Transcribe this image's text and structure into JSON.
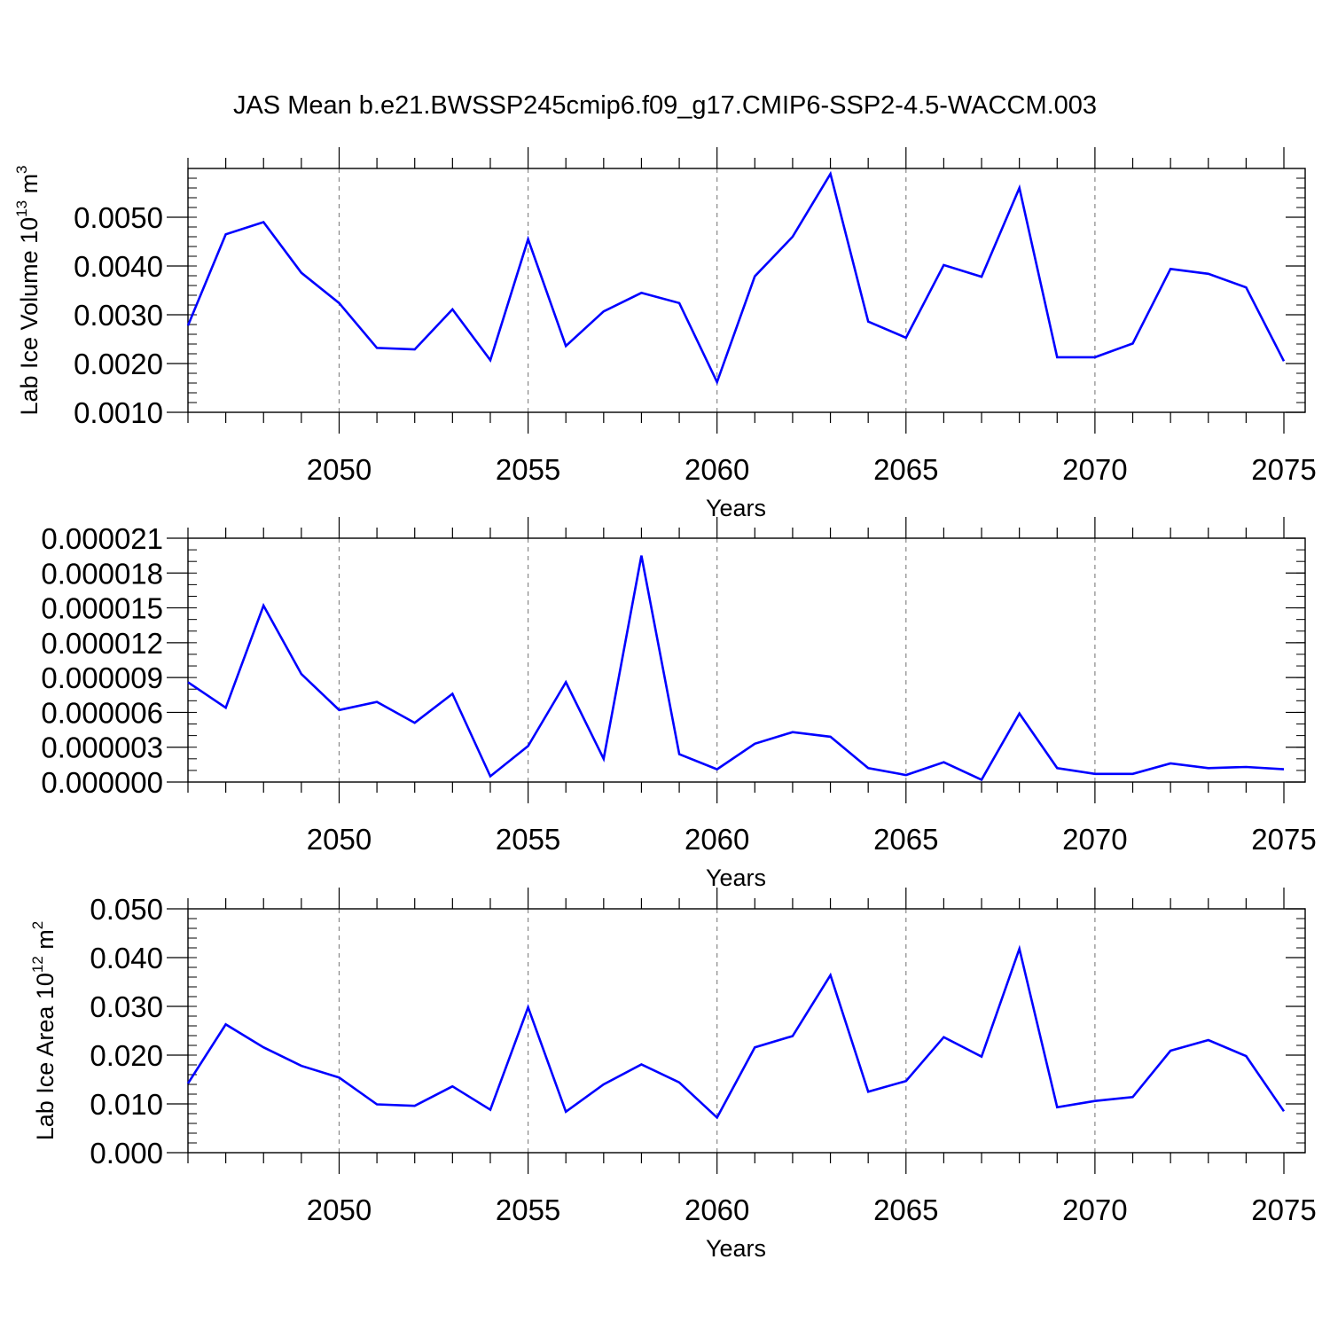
{
  "title": "JAS Mean b.e21.BWSSP245cmip6.f09_g17.CMIP6-SSP2-4.5-WACCM.003",
  "chart_data": [
    {
      "type": "line",
      "ylabel": "Lab Ice Volume 10",
      "ylabel_exp": "13",
      "ylabel_unit": "m",
      "ylabel_unit_exp": "3",
      "xlabel": "Years",
      "xlim": [
        2046,
        2075
      ],
      "ylim": [
        0.001,
        0.006
      ],
      "yticks": [
        0.001,
        0.002,
        0.003,
        0.004,
        0.005
      ],
      "ytick_labels": [
        "0.0010",
        "0.0020",
        "0.0030",
        "0.0040",
        "0.0050"
      ],
      "yminor_step": 0.0002,
      "xticks": [
        2050,
        2055,
        2060,
        2065,
        2070,
        2075
      ],
      "xtick_labels": [
        "2050",
        "2055",
        "2060",
        "2065",
        "2070",
        "2075"
      ],
      "grid": "dashed vertical at major x ticks",
      "color": "#0000ff",
      "series": [
        {
          "x": [
            2046,
            2047,
            2048,
            2049,
            2050,
            2051,
            2052,
            2053,
            2054,
            2055,
            2056,
            2057,
            2058,
            2059,
            2060,
            2061,
            2062,
            2063,
            2064,
            2065,
            2066,
            2067,
            2068,
            2069,
            2070,
            2071,
            2072,
            2073,
            2074,
            2075
          ],
          "y": [
            0.00278,
            0.00465,
            0.0049,
            0.00386,
            0.00324,
            0.00232,
            0.00229,
            0.00311,
            0.00207,
            0.00455,
            0.00236,
            0.00307,
            0.00345,
            0.00324,
            0.00162,
            0.00379,
            0.0046,
            0.00589,
            0.00286,
            0.00253,
            0.00402,
            0.00378,
            0.0056,
            0.00213,
            0.00213,
            0.00241,
            0.00394,
            0.00384,
            0.00356,
            0.00205
          ]
        }
      ]
    },
    {
      "type": "line",
      "ylabel": "",
      "xlabel": "Years",
      "xlim": [
        2046,
        2075
      ],
      "ylim": [
        0,
        2.1e-05
      ],
      "yticks": [
        0,
        3e-06,
        6e-06,
        9e-06,
        1.2e-05,
        1.5e-05,
        1.8e-05,
        2.1e-05
      ],
      "ytick_labels": [
        "0.000000",
        "0.000003",
        "0.000006",
        "0.000009",
        "0.000012",
        "0.000015",
        "0.000018",
        "0.000021"
      ],
      "yminor_step": 1e-06,
      "xticks": [
        2050,
        2055,
        2060,
        2065,
        2070,
        2075
      ],
      "xtick_labels": [
        "2050",
        "2055",
        "2060",
        "2065",
        "2070",
        "2075"
      ],
      "grid": "dashed vertical at major x ticks",
      "color": "#0000ff",
      "series": [
        {
          "x": [
            2046,
            2047,
            2048,
            2049,
            2050,
            2051,
            2052,
            2053,
            2054,
            2055,
            2056,
            2057,
            2058,
            2059,
            2060,
            2061,
            2062,
            2063,
            2064,
            2065,
            2066,
            2067,
            2068,
            2069,
            2070,
            2071,
            2072,
            2073,
            2074,
            2075
          ],
          "y": [
            8.6e-06,
            6.4e-06,
            1.52e-05,
            9.3e-06,
            6.2e-06,
            6.9e-06,
            5.1e-06,
            7.6e-06,
            5e-07,
            3.1e-06,
            8.6e-06,
            2e-06,
            1.95e-05,
            2.4e-06,
            1.1e-06,
            3.3e-06,
            4.3e-06,
            3.9e-06,
            1.2e-06,
            6e-07,
            1.7e-06,
            2e-07,
            5.9e-06,
            1.2e-06,
            7e-07,
            7e-07,
            1.6e-06,
            1.2e-06,
            1.3e-06,
            1.1e-06
          ]
        }
      ]
    },
    {
      "type": "line",
      "ylabel": "Lab Ice Area 10",
      "ylabel_exp": "12",
      "ylabel_unit": "m",
      "ylabel_unit_exp": "2",
      "xlabel": "Years",
      "xlim": [
        2046,
        2075
      ],
      "ylim": [
        0,
        0.05
      ],
      "yticks": [
        0,
        0.01,
        0.02,
        0.03,
        0.04,
        0.05
      ],
      "ytick_labels": [
        "0.000",
        "0.010",
        "0.020",
        "0.030",
        "0.040",
        "0.050"
      ],
      "yminor_step": 0.002,
      "xticks": [
        2050,
        2055,
        2060,
        2065,
        2070,
        2075
      ],
      "xtick_labels": [
        "2050",
        "2055",
        "2060",
        "2065",
        "2070",
        "2075"
      ],
      "grid": "dashed vertical at major x ticks",
      "color": "#0000ff",
      "series": [
        {
          "x": [
            2046,
            2047,
            2048,
            2049,
            2050,
            2051,
            2052,
            2053,
            2054,
            2055,
            2056,
            2057,
            2058,
            2059,
            2060,
            2061,
            2062,
            2063,
            2064,
            2065,
            2066,
            2067,
            2068,
            2069,
            2070,
            2071,
            2072,
            2073,
            2074,
            2075
          ],
          "y": [
            0.0142,
            0.0263,
            0.0216,
            0.0178,
            0.0154,
            0.0099,
            0.0096,
            0.0136,
            0.0088,
            0.0298,
            0.0084,
            0.014,
            0.0181,
            0.0144,
            0.0072,
            0.0216,
            0.0239,
            0.0364,
            0.0125,
            0.0147,
            0.0237,
            0.0197,
            0.0418,
            0.0093,
            0.0106,
            0.0114,
            0.0209,
            0.0231,
            0.0198,
            0.0085
          ]
        }
      ]
    }
  ]
}
